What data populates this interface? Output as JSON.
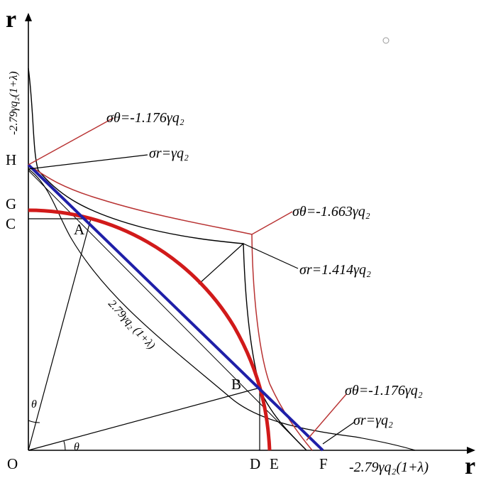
{
  "axes": {
    "x_label": "r",
    "y_label": "r",
    "x_end_label": "-2.79γq₂(1+λ)",
    "y_end_label": "-2.79γq₂(1+λ)"
  },
  "points": {
    "O": "O",
    "A": "A",
    "B": "B",
    "C": "C",
    "D": "D",
    "E": "E",
    "F": "F",
    "G": "G",
    "H": "H"
  },
  "diagonal_label": "2.79γq₂ (1+λ)",
  "angle_label": "θ",
  "annotations": {
    "top_sigma_theta": "σθ=-1.176γq₂",
    "top_sigma_r": "σr=γq₂",
    "mid_sigma_theta": "σθ=-1.663γq₂",
    "mid_sigma_r": "σr=1.414γq₂",
    "bottom_sigma_theta": "σθ=-1.176γq₂",
    "bottom_sigma_r": "σr=γq₂"
  },
  "colors": {
    "blue_line": "#1f1fa8",
    "red_arc": "#d11a1a",
    "red_thin": "#b83232",
    "black": "#000000"
  }
}
